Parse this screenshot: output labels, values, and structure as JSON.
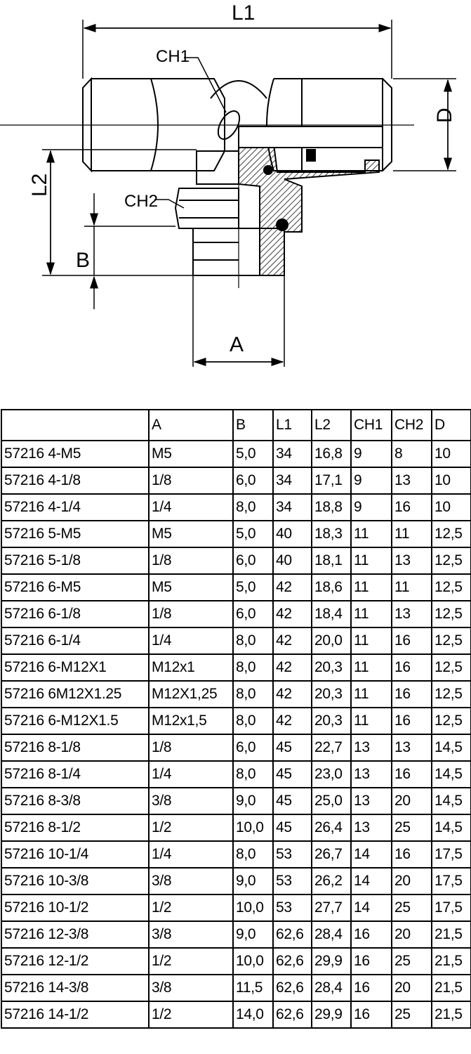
{
  "drawing": {
    "dimensions": {
      "L1": "L1",
      "L2": "L2",
      "D": "D",
      "A": "A",
      "B": "B",
      "CH1": "CH1",
      "CH2": "CH2"
    }
  },
  "table": {
    "headers": [
      "",
      "A",
      "B",
      "L1",
      "L2",
      "CH1",
      "CH2",
      "D"
    ],
    "rows": [
      [
        "57216 4-M5",
        "M5",
        "5,0",
        "34",
        "16,8",
        "9",
        "8",
        "10"
      ],
      [
        "57216 4-1/8",
        "1/8",
        "6,0",
        "34",
        "17,1",
        "9",
        "13",
        "10"
      ],
      [
        "57216 4-1/4",
        "1/4",
        "8,0",
        "34",
        "18,8",
        "9",
        "16",
        "10"
      ],
      [
        "57216 5-M5",
        "M5",
        "5,0",
        "40",
        "18,3",
        "11",
        "11",
        "12,5"
      ],
      [
        "57216 5-1/8",
        "1/8",
        "6,0",
        "40",
        "18,1",
        "11",
        "13",
        "12,5"
      ],
      [
        "57216 6-M5",
        "M5",
        "5,0",
        "42",
        "18,6",
        "11",
        "11",
        "12,5"
      ],
      [
        "57216 6-1/8",
        "1/8",
        "6,0",
        "42",
        "18,4",
        "11",
        "13",
        "12,5"
      ],
      [
        "57216 6-1/4",
        "1/4",
        "8,0",
        "42",
        "20,0",
        "11",
        "16",
        "12,5"
      ],
      [
        "57216 6-M12X1",
        "M12x1",
        "8,0",
        "42",
        "20,3",
        "11",
        "16",
        "12,5"
      ],
      [
        "57216 6M12X1.25",
        "M12X1,25",
        "8,0",
        "42",
        "20,3",
        "11",
        "16",
        "12,5"
      ],
      [
        "57216 6-M12X1.5",
        "M12x1,5",
        "8,0",
        "42",
        "20,3",
        "11",
        "16",
        "12,5"
      ],
      [
        "57216 8-1/8",
        "1/8",
        "6,0",
        "45",
        "22,7",
        "13",
        "13",
        "14,5"
      ],
      [
        "57216 8-1/4",
        "1/4",
        "8,0",
        "45",
        "23,0",
        "13",
        "16",
        "14,5"
      ],
      [
        "57216 8-3/8",
        "3/8",
        "9,0",
        "45",
        "25,0",
        "13",
        "20",
        "14,5"
      ],
      [
        "57216 8-1/2",
        "1/2",
        "10,0",
        "45",
        "26,4",
        "13",
        "25",
        "14,5"
      ],
      [
        "57216 10-1/4",
        "1/4",
        "8,0",
        "53",
        "26,7",
        "14",
        "16",
        "17,5"
      ],
      [
        "57216 10-3/8",
        "3/8",
        "9,0",
        "53",
        "26,2",
        "14",
        "20",
        "17,5"
      ],
      [
        "57216 10-1/2",
        "1/2",
        "10,0",
        "53",
        "27,7",
        "14",
        "25",
        "17,5"
      ],
      [
        "57216 12-3/8",
        "3/8",
        "9,0",
        "62,6",
        "28,4",
        "16",
        "20",
        "21,5"
      ],
      [
        "57216 12-1/2",
        "1/2",
        "10,0",
        "62,6",
        "29,9",
        "16",
        "25",
        "21,5"
      ],
      [
        "57216 14-3/8",
        "3/8",
        "11,5",
        "62,6",
        "28,4",
        "16",
        "20",
        "21,5"
      ],
      [
        "57216 14-1/2",
        "1/2",
        "14,0",
        "62,6",
        "29,9",
        "16",
        "25",
        "21,5"
      ]
    ]
  }
}
